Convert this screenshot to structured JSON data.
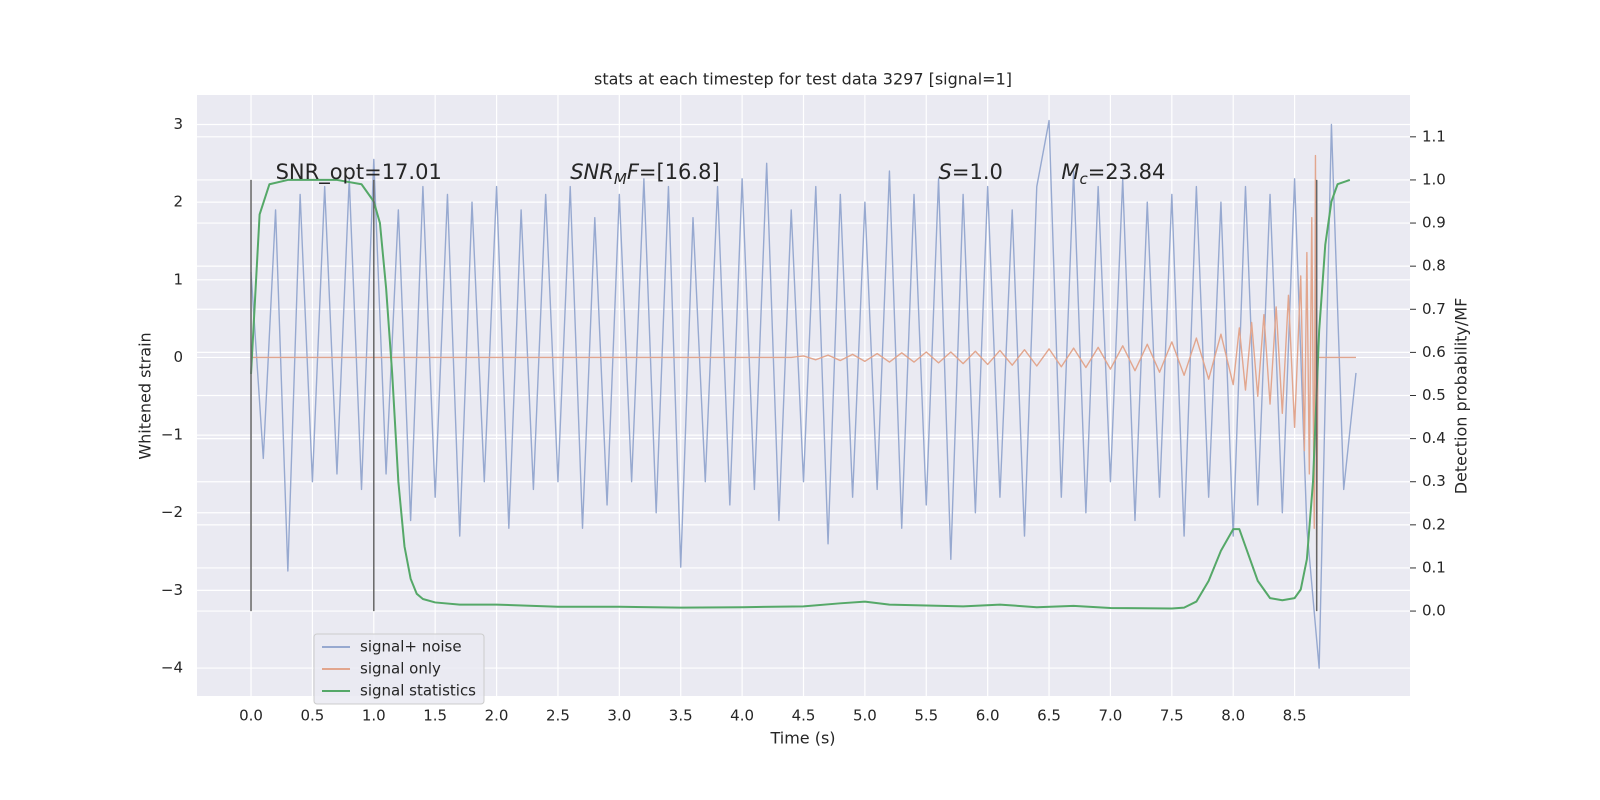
{
  "chart_data": {
    "type": "line",
    "title": "stats at each timestep for test data 3297 [signal=1]",
    "xlabel": "Time (s)",
    "ylabel": "Whitened strain",
    "y2label": "Detection probability/MF",
    "xlim": [
      -0.44,
      9.44
    ],
    "ylim": [
      -4.36,
      3.38
    ],
    "y2lim": [
      -0.197,
      1.197
    ],
    "xticks": [
      {
        "value": 0,
        "label": "0.0"
      },
      0.5,
      {
        "value": 1,
        "label": "1.0"
      },
      1.5,
      {
        "value": 2,
        "label": "2.0"
      },
      2.5,
      {
        "value": 3,
        "label": "3.0"
      },
      3.5,
      {
        "value": 4,
        "label": "4.0"
      },
      4.5,
      {
        "value": 5,
        "label": "5.0"
      },
      5.5,
      {
        "value": 6,
        "label": "6.0"
      },
      6.5,
      {
        "value": 7,
        "label": "7.0"
      },
      7.5,
      {
        "value": 8,
        "label": "8.0"
      },
      8.5
    ],
    "yticks": [
      {
        "value": -4,
        "label": "−4"
      },
      {
        "value": -3,
        "label": "−3"
      },
      {
        "value": -2,
        "label": "−2"
      },
      {
        "value": -1,
        "label": "−1"
      },
      0,
      1,
      2,
      3
    ],
    "y2ticks": [
      {
        "value": 0,
        "label": "0.0"
      },
      0.1,
      0.2,
      0.3,
      0.4,
      0.5,
      0.6,
      0.7,
      0.8,
      0.9,
      {
        "value": 1,
        "label": "1.0"
      },
      1.1
    ],
    "grid": true,
    "legend": "lower left",
    "series": [
      {
        "name": "signal+ noise",
        "color": "#97a9d0",
        "x": [
          0,
          0.1,
          0.2,
          0.3,
          0.4,
          0.5,
          0.6,
          0.7,
          0.8,
          0.9,
          1,
          1.1,
          1.2,
          1.3,
          1.4,
          1.5,
          1.6,
          1.7,
          1.8,
          1.9,
          2,
          2.1,
          2.2,
          2.3,
          2.4,
          2.5,
          2.6,
          2.7,
          2.8,
          2.9,
          3,
          3.1,
          3.2,
          3.3,
          3.4,
          3.5,
          3.6,
          3.7,
          3.8,
          3.9,
          4,
          4.1,
          4.2,
          4.3,
          4.4,
          4.5,
          4.6,
          4.7,
          4.8,
          4.9,
          5,
          5.1,
          5.2,
          5.3,
          5.4,
          5.5,
          5.6,
          5.7,
          5.8,
          5.9,
          6,
          6.1,
          6.2,
          6.3,
          6.4,
          6.5,
          6.6,
          6.7,
          6.8,
          6.9,
          7,
          7.1,
          7.2,
          7.3,
          7.4,
          7.5,
          7.6,
          7.7,
          7.8,
          7.9,
          8,
          8.1,
          8.2,
          8.3,
          8.4,
          8.5,
          8.6,
          8.7,
          8.8,
          8.9,
          9
        ],
        "values": [
          1.1,
          -1.3,
          1.9,
          -2.75,
          2.1,
          -1.6,
          2.2,
          -1.5,
          2.3,
          -1.7,
          2.55,
          -1.5,
          1.9,
          -2.1,
          2.2,
          -1.8,
          2.1,
          -2.3,
          2.0,
          -1.6,
          2.2,
          -2.2,
          1.9,
          -1.7,
          2.1,
          -1.6,
          2.2,
          -2.2,
          1.8,
          -1.9,
          2.1,
          -1.6,
          2.3,
          -2.0,
          2.2,
          -2.7,
          1.8,
          -1.6,
          2.2,
          -1.9,
          2.3,
          -1.7,
          2.5,
          -2.1,
          1.9,
          -1.6,
          2.2,
          -2.4,
          2.1,
          -1.8,
          2.0,
          -1.7,
          2.4,
          -2.2,
          2.1,
          -1.9,
          2.3,
          -2.6,
          2.1,
          -2.0,
          2.2,
          -1.8,
          1.9,
          -2.3,
          2.2,
          3.05,
          -1.8,
          2.4,
          -2.0,
          2.2,
          -1.6,
          2.3,
          -2.1,
          2.0,
          -1.8,
          2.1,
          -2.3,
          2.2,
          -1.8,
          2.0,
          -2.3,
          2.2,
          -1.9,
          2.1,
          -2.0,
          2.3,
          -2.2,
          -4.0,
          3.0,
          -1.7,
          -0.2
        ]
      },
      {
        "name": "signal only",
        "color": "#e2a68e",
        "x": [
          0,
          4.4,
          4.5,
          4.6,
          4.7,
          4.8,
          4.9,
          5,
          5.1,
          5.2,
          5.3,
          5.4,
          5.5,
          5.6,
          5.7,
          5.8,
          5.9,
          6,
          6.1,
          6.2,
          6.3,
          6.4,
          6.5,
          6.6,
          6.7,
          6.8,
          6.9,
          7,
          7.1,
          7.2,
          7.3,
          7.4,
          7.5,
          7.6,
          7.7,
          7.8,
          7.9,
          8,
          8.05,
          8.1,
          8.15,
          8.2,
          8.25,
          8.3,
          8.35,
          8.4,
          8.45,
          8.5,
          8.55,
          8.58,
          8.6,
          8.62,
          8.64,
          8.66,
          8.67,
          8.68,
          8.69,
          9
        ],
        "values": [
          0,
          0,
          0.02,
          -0.03,
          0.03,
          -0.04,
          0.04,
          -0.05,
          0.05,
          -0.06,
          0.06,
          -0.06,
          0.07,
          -0.07,
          0.07,
          -0.08,
          0.08,
          -0.09,
          0.09,
          -0.1,
          0.1,
          -0.11,
          0.11,
          -0.12,
          0.12,
          -0.13,
          0.13,
          -0.15,
          0.15,
          -0.17,
          0.17,
          -0.19,
          0.2,
          -0.23,
          0.25,
          -0.28,
          0.3,
          -0.35,
          0.38,
          -0.42,
          0.45,
          -0.5,
          0.55,
          -0.6,
          0.65,
          -0.72,
          0.8,
          -0.9,
          1.05,
          -1.2,
          1.35,
          -1.5,
          1.8,
          -2.2,
          2.6,
          -2.7,
          0,
          0
        ]
      },
      {
        "name": "signal statistics",
        "color": "#55a868",
        "axis": "y2",
        "x": [
          0,
          0.07,
          0.15,
          0.3,
          0.5,
          0.7,
          0.9,
          1,
          1.05,
          1.1,
          1.15,
          1.2,
          1.25,
          1.3,
          1.35,
          1.4,
          1.5,
          1.7,
          2,
          2.5,
          3,
          3.5,
          4,
          4.5,
          4.8,
          5,
          5.2,
          5.5,
          5.8,
          6.1,
          6.4,
          6.7,
          7,
          7.5,
          7.6,
          7.7,
          7.8,
          7.9,
          8,
          8.05,
          8.1,
          8.2,
          8.3,
          8.4,
          8.5,
          8.55,
          8.6,
          8.65,
          8.7,
          8.75,
          8.8,
          8.85,
          8.95
        ],
        "values": [
          0.55,
          0.92,
          0.99,
          1.0,
          1.0,
          1.0,
          0.99,
          0.95,
          0.9,
          0.75,
          0.55,
          0.3,
          0.15,
          0.075,
          0.04,
          0.028,
          0.02,
          0.015,
          0.015,
          0.01,
          0.01,
          0.008,
          0.009,
          0.011,
          0.018,
          0.022,
          0.015,
          0.013,
          0.011,
          0.015,
          0.009,
          0.012,
          0.007,
          0.006,
          0.008,
          0.022,
          0.07,
          0.14,
          0.19,
          0.19,
          0.15,
          0.07,
          0.03,
          0.025,
          0.03,
          0.05,
          0.12,
          0.3,
          0.65,
          0.85,
          0.95,
          0.99,
          1.0
        ]
      }
    ],
    "vlines": {
      "x": [
        0,
        1,
        8.68
      ],
      "ymin": 0,
      "ymax": 1,
      "axis": "y2",
      "color": "#666666"
    },
    "annotations": [
      {
        "x": 0.2,
        "y": 2.3,
        "parts": [
          {
            "t": "SNR_opt=17.01"
          }
        ]
      },
      {
        "x": 2.6,
        "y": 2.3,
        "parts": [
          {
            "t": "SNR",
            "italic": true
          },
          {
            "t": "M",
            "italic": true,
            "sub": true
          },
          {
            "t": "F",
            "italic": true
          },
          {
            "t": "=[16.8]"
          }
        ]
      },
      {
        "x": 5.6,
        "y": 2.3,
        "parts": [
          {
            "t": "S",
            "italic": true
          },
          {
            "t": "=1.0"
          }
        ]
      },
      {
        "x": 6.6,
        "y": 2.3,
        "parts": [
          {
            "t": "M",
            "italic": true
          },
          {
            "t": "c",
            "italic": true,
            "sub": true
          },
          {
            "t": "=23.84"
          }
        ]
      }
    ]
  }
}
